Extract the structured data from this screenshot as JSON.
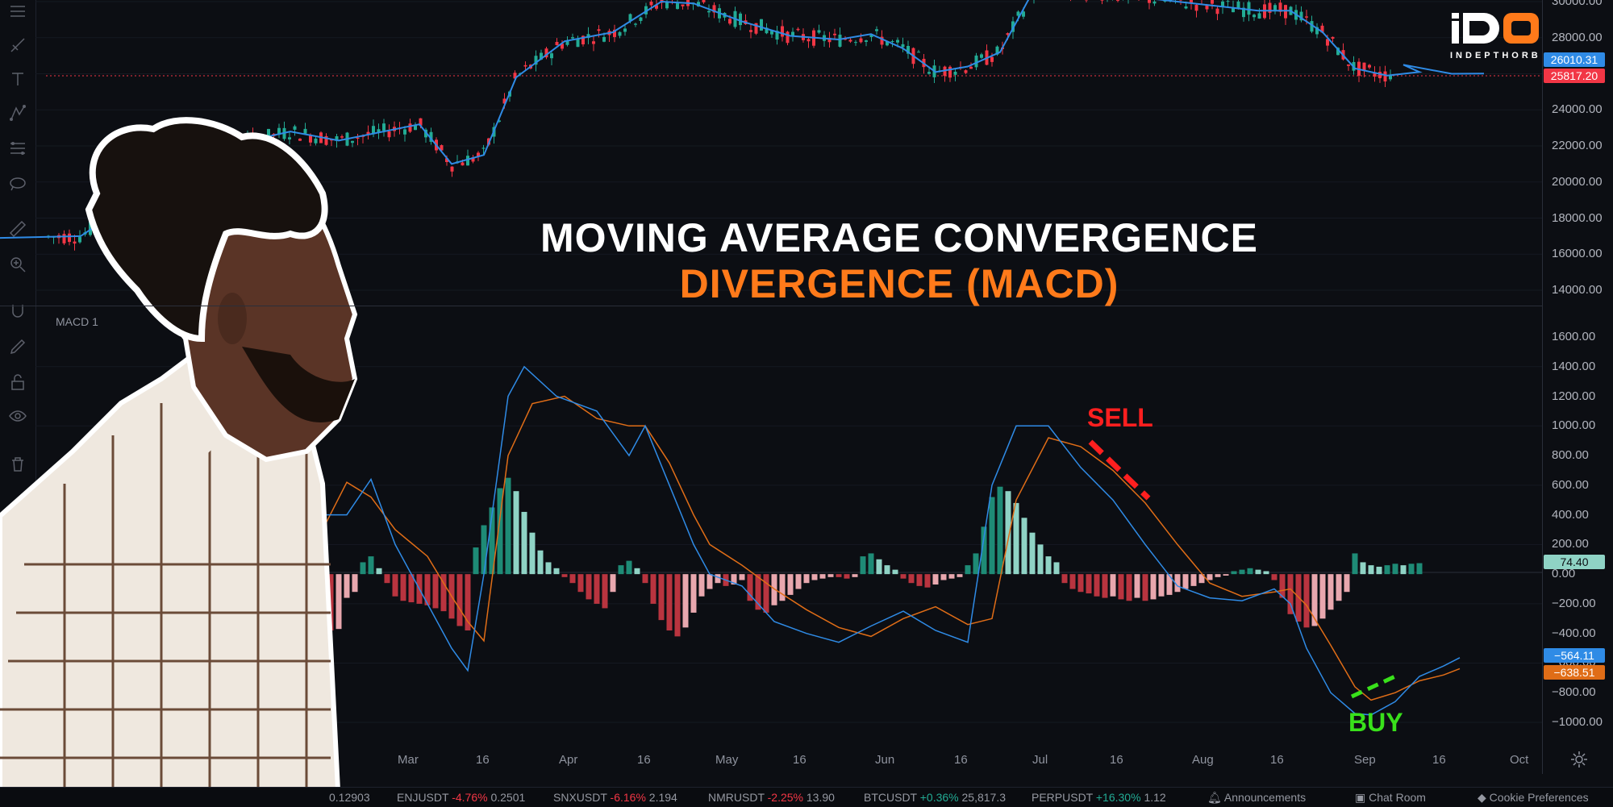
{
  "title": {
    "line1": "MOVING AVERAGE CONVERGENCE",
    "line2": "DIVERGENCE (MACD)",
    "line1_color": "#ffffff",
    "line2_color": "#ff7a1a"
  },
  "logo": {
    "mark": "iDO",
    "text": "INDEPTHORB"
  },
  "annotations": {
    "sell": "SELL",
    "buy": "BUY",
    "sell_color": "#ff1f1f",
    "buy_color": "#39e11b"
  },
  "indicator_label": "MACD 1",
  "price_axis": {
    "labels": [
      "30000.00",
      "28000.00",
      "26000.00",
      "24000.00",
      "22000.00",
      "20000.00",
      "18000.00",
      "16000.00",
      "14000.00"
    ],
    "last_price_blue": "26010.31",
    "last_price_red": "25817.20"
  },
  "macd_axis": {
    "labels": [
      "1600.00",
      "1400.00",
      "1200.00",
      "1000.00",
      "800.00",
      "600.00",
      "400.00",
      "200.00",
      "0.00",
      "−200.00",
      "−400.00",
      "−600.00",
      "−800.00",
      "−1000.00"
    ],
    "histogram_value": "74.40",
    "macd_value": "−564.11",
    "signal_value": "−638.51"
  },
  "time_axis": [
    "Mar",
    "16",
    "Apr",
    "16",
    "May",
    "16",
    "Jun",
    "16",
    "Jul",
    "16",
    "Aug",
    "16",
    "Sep",
    "16",
    "Oct"
  ],
  "ticker": [
    {
      "symbol": "",
      "change": "",
      "price": "0.12903",
      "dir": "neg"
    },
    {
      "symbol": "ENJUSDT",
      "change": "-4.76%",
      "price": "0.2501",
      "dir": "neg"
    },
    {
      "symbol": "SNXUSDT",
      "change": "-6.16%",
      "price": "2.194",
      "dir": "neg"
    },
    {
      "symbol": "NMRUSDT",
      "change": "-2.25%",
      "price": "13.90",
      "dir": "neg"
    },
    {
      "symbol": "BTCUSDT",
      "change": "+0.36%",
      "price": "25,817.3",
      "dir": "pos"
    },
    {
      "symbol": "PERPUSDT",
      "change": "+16.30%",
      "price": "1.12",
      "dir": "pos"
    }
  ],
  "footer_links": {
    "announcements": "Announcements",
    "chat_room": "Chat Room",
    "cookie_preferences": "Cookie Preferences"
  },
  "colors": {
    "background": "#0c0e13",
    "up": "#22ab94",
    "down": "#f23645",
    "ma_line": "#2f8be6",
    "signal_line": "#e06d17",
    "hist_pos_strong": "#1e8b76",
    "hist_pos_weak": "#8fd3c5",
    "hist_neg_strong": "#b9343f",
    "hist_neg_weak": "#e8a7ae"
  },
  "chart_data": {
    "type": "line",
    "price": {
      "ylim": [
        13000,
        30500
      ],
      "ma": [
        [
          0,
          16900
        ],
        [
          100,
          17000
        ],
        [
          150,
          18500
        ],
        [
          200,
          21500
        ],
        [
          280,
          22000
        ],
        [
          360,
          22800
        ],
        [
          420,
          22300
        ],
        [
          520,
          23200
        ],
        [
          560,
          21000
        ],
        [
          600,
          21500
        ],
        [
          640,
          25800
        ],
        [
          700,
          27800
        ],
        [
          760,
          28300
        ],
        [
          820,
          30000
        ],
        [
          860,
          29900
        ],
        [
          920,
          28900
        ],
        [
          980,
          28100
        ],
        [
          1040,
          27900
        ],
        [
          1080,
          28200
        ],
        [
          1120,
          27400
        ],
        [
          1160,
          26100
        ],
        [
          1200,
          26400
        ],
        [
          1240,
          27200
        ],
        [
          1280,
          30500
        ],
        [
          1360,
          30500
        ],
        [
          1440,
          30100
        ],
        [
          1500,
          29800
        ],
        [
          1560,
          29500
        ],
        [
          1600,
          29500
        ],
        [
          1640,
          28300
        ],
        [
          1680,
          26300
        ],
        [
          1720,
          25900
        ],
        [
          1760,
          26100
        ],
        [
          1740,
          26500
        ],
        [
          1800,
          26000
        ],
        [
          1840,
          26010
        ]
      ]
    },
    "macd": {
      "ylim": [
        -1100,
        1700
      ],
      "macd_line": [
        [
          380,
          0
        ],
        [
          400,
          400
        ],
        [
          430,
          400
        ],
        [
          460,
          640
        ],
        [
          490,
          200
        ],
        [
          530,
          -200
        ],
        [
          560,
          -500
        ],
        [
          580,
          -650
        ],
        [
          600,
          0
        ],
        [
          630,
          1200
        ],
        [
          650,
          1400
        ],
        [
          690,
          1200
        ],
        [
          740,
          1100
        ],
        [
          780,
          800
        ],
        [
          800,
          1000
        ],
        [
          830,
          600
        ],
        [
          860,
          200
        ],
        [
          880,
          0
        ],
        [
          920,
          -80
        ],
        [
          960,
          -320
        ],
        [
          1000,
          -400
        ],
        [
          1040,
          -460
        ],
        [
          1080,
          -350
        ],
        [
          1120,
          -250
        ],
        [
          1160,
          -380
        ],
        [
          1200,
          -460
        ],
        [
          1230,
          600
        ],
        [
          1260,
          1000
        ],
        [
          1300,
          1000
        ],
        [
          1340,
          720
        ],
        [
          1380,
          500
        ],
        [
          1420,
          200
        ],
        [
          1460,
          -80
        ],
        [
          1500,
          -160
        ],
        [
          1540,
          -180
        ],
        [
          1580,
          -100
        ],
        [
          1600,
          -200
        ],
        [
          1620,
          -500
        ],
        [
          1650,
          -800
        ],
        [
          1680,
          -940
        ],
        [
          1700,
          -950
        ],
        [
          1730,
          -860
        ],
        [
          1760,
          -690
        ],
        [
          1790,
          -620
        ],
        [
          1810,
          -564
        ]
      ],
      "signal_line": [
        [
          380,
          0
        ],
        [
          400,
          300
        ],
        [
          430,
          620
        ],
        [
          460,
          520
        ],
        [
          490,
          300
        ],
        [
          530,
          120
        ],
        [
          560,
          -150
        ],
        [
          580,
          -320
        ],
        [
          600,
          -450
        ],
        [
          630,
          800
        ],
        [
          660,
          1150
        ],
        [
          700,
          1200
        ],
        [
          740,
          1050
        ],
        [
          780,
          1000
        ],
        [
          800,
          1000
        ],
        [
          830,
          750
        ],
        [
          860,
          400
        ],
        [
          880,
          200
        ],
        [
          920,
          60
        ],
        [
          960,
          -100
        ],
        [
          1000,
          -240
        ],
        [
          1040,
          -360
        ],
        [
          1080,
          -420
        ],
        [
          1120,
          -300
        ],
        [
          1160,
          -220
        ],
        [
          1200,
          -340
        ],
        [
          1230,
          -300
        ],
        [
          1260,
          500
        ],
        [
          1300,
          920
        ],
        [
          1340,
          860
        ],
        [
          1380,
          700
        ],
        [
          1420,
          480
        ],
        [
          1460,
          200
        ],
        [
          1500,
          -60
        ],
        [
          1540,
          -150
        ],
        [
          1580,
          -120
        ],
        [
          1600,
          -100
        ],
        [
          1620,
          -210
        ],
        [
          1650,
          -480
        ],
        [
          1680,
          -760
        ],
        [
          1700,
          -850
        ],
        [
          1730,
          -800
        ],
        [
          1760,
          -720
        ],
        [
          1790,
          -680
        ],
        [
          1810,
          -638
        ]
      ],
      "histogram": [
        [
          380,
          -180
        ],
        [
          390,
          -240
        ],
        [
          400,
          -320
        ],
        [
          410,
          -380
        ],
        [
          420,
          -370
        ],
        [
          430,
          -160
        ],
        [
          440,
          -120
        ],
        [
          450,
          80
        ],
        [
          460,
          120
        ],
        [
          470,
          40
        ],
        [
          480,
          -60
        ],
        [
          490,
          -150
        ],
        [
          500,
          -180
        ],
        [
          510,
          -190
        ],
        [
          520,
          -200
        ],
        [
          530,
          -210
        ],
        [
          540,
          -230
        ],
        [
          550,
          -250
        ],
        [
          560,
          -300
        ],
        [
          570,
          -350
        ],
        [
          580,
          -380
        ],
        [
          590,
          180
        ],
        [
          600,
          330
        ],
        [
          610,
          450
        ],
        [
          620,
          580
        ],
        [
          630,
          650
        ],
        [
          640,
          560
        ],
        [
          650,
          420
        ],
        [
          660,
          280
        ],
        [
          670,
          160
        ],
        [
          680,
          80
        ],
        [
          690,
          40
        ],
        [
          700,
          -20
        ],
        [
          710,
          -60
        ],
        [
          720,
          -120
        ],
        [
          730,
          -170
        ],
        [
          740,
          -200
        ],
        [
          750,
          -230
        ],
        [
          760,
          -120
        ],
        [
          770,
          60
        ],
        [
          780,
          90
        ],
        [
          790,
          40
        ],
        [
          800,
          -60
        ],
        [
          810,
          -200
        ],
        [
          820,
          -310
        ],
        [
          830,
          -380
        ],
        [
          840,
          -420
        ],
        [
          850,
          -360
        ],
        [
          860,
          -260
        ],
        [
          870,
          -150
        ],
        [
          880,
          -100
        ],
        [
          890,
          -60
        ],
        [
          900,
          -80
        ],
        [
          910,
          -70
        ],
        [
          920,
          -40
        ],
        [
          930,
          -180
        ],
        [
          940,
          -240
        ],
        [
          950,
          -260
        ],
        [
          960,
          -210
        ],
        [
          970,
          -180
        ],
        [
          980,
          -140
        ],
        [
          990,
          -100
        ],
        [
          1000,
          -60
        ],
        [
          1010,
          -40
        ],
        [
          1020,
          -30
        ],
        [
          1030,
          -20
        ],
        [
          1040,
          -20
        ],
        [
          1050,
          -30
        ],
        [
          1060,
          -20
        ],
        [
          1070,
          120
        ],
        [
          1080,
          140
        ],
        [
          1090,
          100
        ],
        [
          1100,
          60
        ],
        [
          1110,
          30
        ],
        [
          1120,
          -30
        ],
        [
          1130,
          -60
        ],
        [
          1140,
          -80
        ],
        [
          1150,
          -90
        ],
        [
          1160,
          -70
        ],
        [
          1170,
          -40
        ],
        [
          1180,
          -30
        ],
        [
          1190,
          -20
        ],
        [
          1200,
          60
        ],
        [
          1210,
          140
        ],
        [
          1220,
          320
        ],
        [
          1230,
          520
        ],
        [
          1240,
          590
        ],
        [
          1250,
          560
        ],
        [
          1260,
          480
        ],
        [
          1270,
          380
        ],
        [
          1280,
          280
        ],
        [
          1290,
          200
        ],
        [
          1300,
          120
        ],
        [
          1310,
          80
        ],
        [
          1320,
          -60
        ],
        [
          1330,
          -100
        ],
        [
          1340,
          -120
        ],
        [
          1350,
          -130
        ],
        [
          1360,
          -150
        ],
        [
          1370,
          -160
        ],
        [
          1380,
          -150
        ],
        [
          1390,
          -170
        ],
        [
          1400,
          -180
        ],
        [
          1410,
          -160
        ],
        [
          1420,
          -180
        ],
        [
          1430,
          -170
        ],
        [
          1440,
          -150
        ],
        [
          1450,
          -140
        ],
        [
          1460,
          -120
        ],
        [
          1470,
          -100
        ],
        [
          1480,
          -80
        ],
        [
          1490,
          -60
        ],
        [
          1500,
          -40
        ],
        [
          1510,
          -20
        ],
        [
          1520,
          -10
        ],
        [
          1530,
          20
        ],
        [
          1540,
          30
        ],
        [
          1550,
          40
        ],
        [
          1560,
          30
        ],
        [
          1570,
          20
        ],
        [
          1580,
          -40
        ],
        [
          1590,
          -160
        ],
        [
          1600,
          -270
        ],
        [
          1610,
          -320
        ],
        [
          1620,
          -360
        ],
        [
          1630,
          -350
        ],
        [
          1640,
          -300
        ],
        [
          1650,
          -240
        ],
        [
          1660,
          -180
        ],
        [
          1670,
          -120
        ],
        [
          1680,
          140
        ],
        [
          1690,
          80
        ],
        [
          1700,
          60
        ],
        [
          1710,
          50
        ],
        [
          1720,
          60
        ],
        [
          1730,
          70
        ],
        [
          1740,
          60
        ],
        [
          1750,
          70
        ],
        [
          1760,
          74
        ]
      ]
    }
  }
}
